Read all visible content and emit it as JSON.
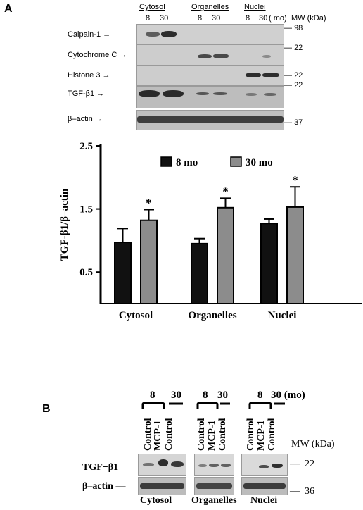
{
  "panel_a": {
    "letter": "A",
    "groups": [
      {
        "name": "Cytosol",
        "lanes": [
          "8",
          "30"
        ]
      },
      {
        "name": "Organelles",
        "lanes": [
          "8",
          "30"
        ]
      },
      {
        "name": "Nuclei",
        "lanes": [
          "8",
          "30"
        ]
      }
    ],
    "unit_mo": "( mo)",
    "mw_header": "MW (kDa)",
    "rows": [
      {
        "label": "Calpain-1",
        "mw": "98"
      },
      {
        "label": "Cytochrome C",
        "mw": "22"
      },
      {
        "label": "Histone 3",
        "mw": "22"
      },
      {
        "label": "TGF-β1",
        "mw": "22"
      },
      {
        "label": "β–actin",
        "mw": "37"
      }
    ]
  },
  "chart_data": {
    "type": "bar",
    "categories": [
      "Cytosol",
      "Organelles",
      "Nuclei"
    ],
    "series": [
      {
        "name": "8 mo",
        "color": "#111111",
        "values": [
          0.97,
          0.95,
          1.27
        ],
        "errors": [
          0.22,
          0.08,
          0.07
        ]
      },
      {
        "name": "30 mo",
        "color": "#8c8c8c",
        "values": [
          1.32,
          1.52,
          1.53
        ],
        "errors": [
          0.17,
          0.15,
          0.32
        ]
      }
    ],
    "significance": [
      "*",
      "*",
      "*"
    ],
    "ylabel": "TGF-β1/β–actin",
    "yticks": [
      "0.5",
      "1.5",
      "2.5"
    ],
    "ylim": [
      0.0,
      2.5
    ],
    "legend_position": "top"
  },
  "panel_b": {
    "letter": "B",
    "age_labels": [
      "8",
      "30",
      "8",
      "30",
      "8",
      "30 (mo)"
    ],
    "lanes": [
      "Control",
      "MCP-1",
      "Control"
    ],
    "mw_header": "MW (kDa)",
    "rows": [
      {
        "label": "TGF−β1",
        "mw": "22"
      },
      {
        "label": "β–actin",
        "mw": "36"
      }
    ],
    "sections": [
      "Cytosol",
      "Organelles",
      "Nuclei"
    ]
  }
}
